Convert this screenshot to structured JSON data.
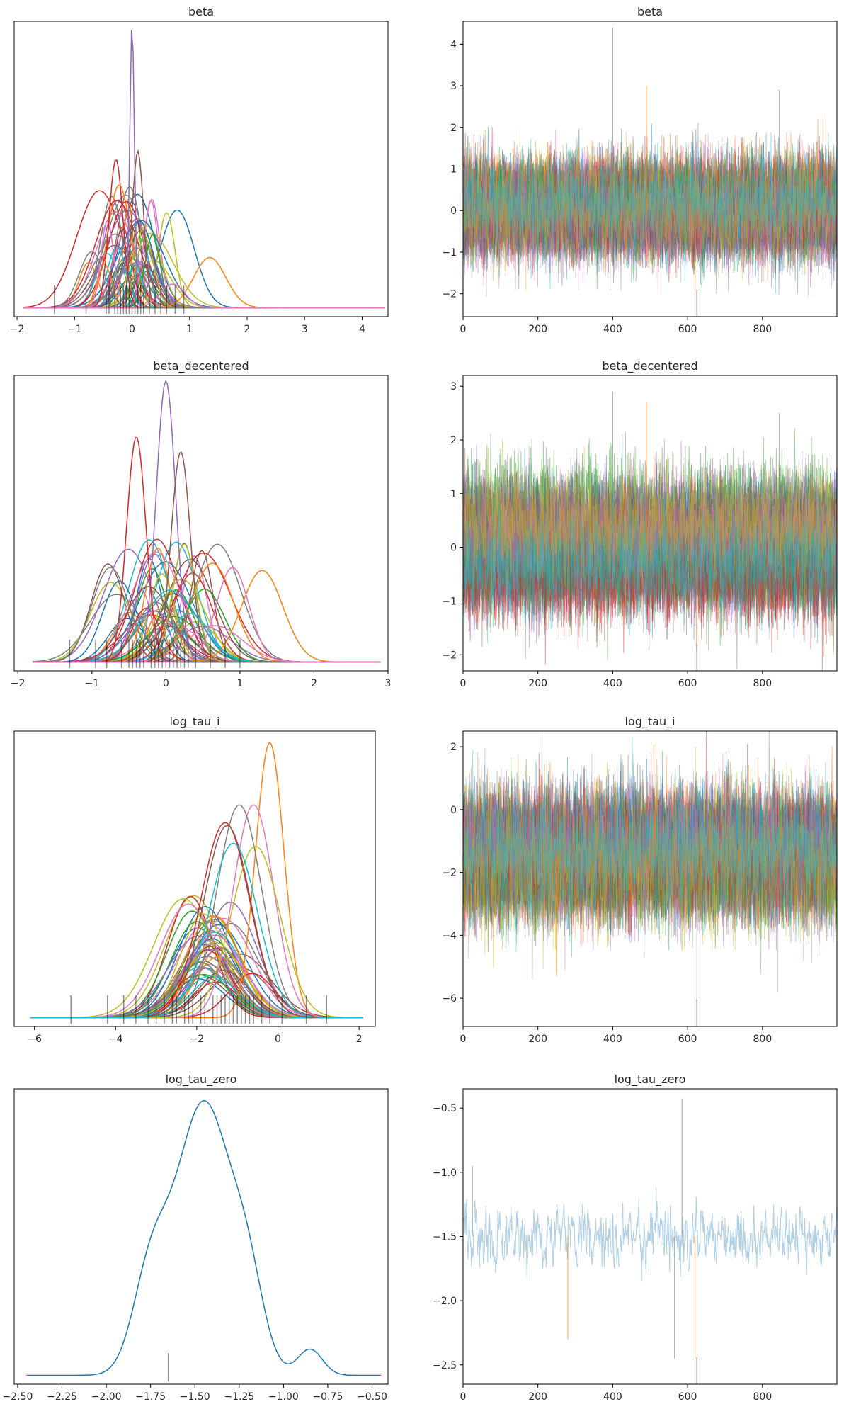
{
  "palette": [
    "#1f77b4",
    "#ff7f0e",
    "#2ca02c",
    "#d62728",
    "#9467bd",
    "#8c564b",
    "#e377c2",
    "#7f7f7f",
    "#bcbd22",
    "#17becf"
  ],
  "rug_color": "#000000",
  "chart_data": [
    {
      "id": "beta-density",
      "type": "line",
      "kind": "kde",
      "title": "beta",
      "xlim": [
        -2.05,
        4.45
      ],
      "ylim": [
        0,
        1.0
      ],
      "xticks": [
        -2,
        -1,
        0,
        1,
        2,
        3,
        4
      ],
      "yticks": [],
      "dist": "normal",
      "n_series": 50,
      "center_mean": 0.0,
      "center_spread": 0.3,
      "scale_min": 0.06,
      "scale_max": 0.4,
      "support": [
        -1.9,
        4.4
      ],
      "named_series": [
        {
          "color": "#9467bd",
          "mean": 0.0,
          "scale": 0.04,
          "peak": 0.94
        },
        {
          "color": "#d62728",
          "mean": -0.28,
          "scale": 0.12,
          "peak": 0.5
        },
        {
          "color": "#8c564b",
          "mean": 0.1,
          "scale": 0.1,
          "peak": 0.53
        },
        {
          "color": "#ff7f0e",
          "mean": 1.35,
          "scale": 0.28,
          "peak": 0.17
        },
        {
          "color": "#7f7f7f",
          "mean": -0.7,
          "scale": 0.22,
          "peak": 0.19
        },
        {
          "color": "#e377c2",
          "mean": 0.7,
          "scale": 0.22,
          "peak": 0.08
        }
      ],
      "rug": [
        -1.35,
        -0.8,
        -0.45,
        -0.4,
        -0.3,
        -0.25,
        -0.2,
        -0.15,
        -0.1,
        -0.05,
        0.0,
        0.05,
        0.1,
        0.15,
        0.2,
        0.3,
        0.4,
        0.5,
        0.6,
        0.75,
        0.9
      ]
    },
    {
      "id": "beta-trace",
      "type": "line",
      "kind": "trace",
      "title": "beta",
      "xlim": [
        0,
        999
      ],
      "ylim": [
        -2.55,
        4.55
      ],
      "xticks": [
        0,
        200,
        400,
        600,
        800
      ],
      "yticks": [
        -2,
        -1,
        0,
        1,
        2,
        3,
        4
      ],
      "n_series": 50,
      "n_draws": 1000,
      "center_mean": 0.05,
      "center_spread": 0.25,
      "noise": 0.5,
      "spikes": [
        [
          400,
          4.4
        ],
        [
          490,
          3.0
        ],
        [
          845,
          2.9
        ],
        [
          620,
          -1.9
        ]
      ]
    },
    {
      "id": "beta-decentered-density",
      "type": "line",
      "kind": "kde",
      "title": "beta_decentered",
      "xlim": [
        -2.05,
        3.0
      ],
      "ylim": [
        0,
        1.0
      ],
      "xticks": [
        -2,
        -1,
        0,
        1,
        2,
        3
      ],
      "yticks": [],
      "dist": "normal",
      "n_series": 50,
      "center_mean": 0.0,
      "center_spread": 0.35,
      "scale_min": 0.12,
      "scale_max": 0.38,
      "support": [
        -1.8,
        2.9
      ],
      "named_series": [
        {
          "color": "#9467bd",
          "mean": 0.0,
          "scale": 0.13,
          "peak": 0.95
        },
        {
          "color": "#d62728",
          "mean": -0.4,
          "scale": 0.13,
          "peak": 0.76
        },
        {
          "color": "#8c564b",
          "mean": 0.2,
          "scale": 0.13,
          "peak": 0.71
        },
        {
          "color": "#ff7f0e",
          "mean": 1.3,
          "scale": 0.28,
          "peak": 0.31
        },
        {
          "color": "#7f7f7f",
          "mean": -0.75,
          "scale": 0.25,
          "peak": 0.32
        },
        {
          "color": "#e377c2",
          "mean": 0.9,
          "scale": 0.22,
          "peak": 0.32
        }
      ],
      "rug": [
        -1.3,
        -0.95,
        -0.8,
        -0.6,
        -0.5,
        -0.45,
        -0.4,
        -0.35,
        -0.3,
        -0.2,
        -0.15,
        -0.1,
        -0.05,
        0.0,
        0.05,
        0.1,
        0.15,
        0.2,
        0.25,
        0.3,
        0.4,
        0.6,
        0.8,
        1.0
      ]
    },
    {
      "id": "beta-decentered-trace",
      "type": "line",
      "kind": "trace",
      "title": "beta_decentered",
      "xlim": [
        0,
        999
      ],
      "ylim": [
        -2.3,
        3.2
      ],
      "xticks": [
        0,
        200,
        400,
        600,
        800
      ],
      "yticks": [
        -2,
        -1,
        0,
        1,
        2,
        3
      ],
      "n_series": 50,
      "n_draws": 1000,
      "center_mean": 0.1,
      "center_spread": 0.3,
      "noise": 0.45,
      "spikes": [
        [
          400,
          2.9
        ],
        [
          490,
          2.7
        ],
        [
          845,
          2.5
        ],
        [
          625,
          -1.8
        ]
      ]
    },
    {
      "id": "log-tau-i-density",
      "type": "line",
      "kind": "kde",
      "title": "log_tau_i",
      "xlim": [
        -6.5,
        2.4
      ],
      "ylim": [
        0,
        1.0
      ],
      "xticks": [
        -6,
        -4,
        -2,
        0,
        2
      ],
      "yticks": [],
      "dist": "normal",
      "n_series": 50,
      "center_mean": -1.6,
      "center_spread": 0.35,
      "scale_min": 0.55,
      "scale_max": 0.75,
      "support": [
        -6.1,
        2.1
      ],
      "named_series": [
        {
          "color": "#ff7f0e",
          "mean": -0.2,
          "scale": 0.35,
          "peak": 0.93
        },
        {
          "color": "#e377c2",
          "mean": -0.6,
          "scale": 0.5,
          "peak": 0.72
        },
        {
          "color": "#7f7f7f",
          "mean": -0.95,
          "scale": 0.55,
          "peak": 0.72
        },
        {
          "color": "#d62728",
          "mean": -1.3,
          "scale": 0.6,
          "peak": 0.66
        },
        {
          "color": "#8c564b",
          "mean": -1.25,
          "scale": 0.58,
          "peak": 0.65
        },
        {
          "color": "#bcbd22",
          "mean": -0.55,
          "scale": 0.6,
          "peak": 0.58
        },
        {
          "color": "#17becf",
          "mean": -1.1,
          "scale": 0.6,
          "peak": 0.59
        }
      ],
      "rug": [
        -5.1,
        -4.2,
        -3.8,
        -3.5,
        -3.2,
        -3.0,
        -2.8,
        -2.6,
        -2.5,
        -2.3,
        -2.2,
        -2.1,
        -1.9,
        -1.8,
        -1.6,
        -1.5,
        -1.4,
        -1.3,
        -1.2,
        -1.1,
        -1.0,
        -0.9,
        -0.8,
        -0.7,
        -0.6,
        -0.4,
        -0.2,
        0.1,
        0.7,
        1.2
      ]
    },
    {
      "id": "log-tau-i-trace",
      "type": "line",
      "kind": "trace",
      "title": "log_tau_i",
      "xlim": [
        0,
        999
      ],
      "ylim": [
        -6.9,
        2.5
      ],
      "xticks": [
        0,
        200,
        400,
        600,
        800
      ],
      "yticks": [
        -6,
        -4,
        -2,
        0,
        2
      ],
      "n_series": 50,
      "n_draws": 1000,
      "center_mean": -1.55,
      "center_spread": 0.3,
      "noise": 0.85,
      "spikes": [
        [
          625,
          -6.1
        ],
        [
          510,
          2.1
        ],
        [
          760,
          2.1
        ],
        [
          250,
          -5.3
        ],
        [
          840,
          -5.8
        ]
      ]
    },
    {
      "id": "log-tau-zero-density",
      "type": "line",
      "kind": "kde",
      "title": "log_tau_zero",
      "xlim": [
        -2.52,
        -0.41
      ],
      "ylim": [
        0,
        1.0
      ],
      "xticks": [
        -2.5,
        -2.25,
        -2.0,
        -1.75,
        -1.5,
        -1.25,
        -1.0,
        -0.75,
        -0.5
      ],
      "xtick_labels": [
        "−2.50",
        "−2.25",
        "−2.00",
        "−1.75",
        "−1.50",
        "−1.25",
        "−1.00",
        "−0.75",
        "−0.50"
      ],
      "yticks": [],
      "dist": "mixture",
      "n_series": 0,
      "support": [
        -2.45,
        -0.45
      ],
      "components": [
        {
          "mean": -1.45,
          "scale": 0.16,
          "weight": 0.72
        },
        {
          "mean": -1.75,
          "scale": 0.1,
          "weight": 0.15
        },
        {
          "mean": -1.2,
          "scale": 0.09,
          "weight": 0.1
        },
        {
          "mean": -0.85,
          "scale": 0.07,
          "weight": 0.03
        }
      ],
      "named_series": [
        {
          "color": "#1f77b4",
          "peak": 0.93
        }
      ],
      "rug": [
        -1.65
      ]
    },
    {
      "id": "log-tau-zero-trace",
      "type": "line",
      "kind": "trace",
      "title": "log_tau_zero",
      "xlim": [
        0,
        999
      ],
      "ylim": [
        -2.65,
        -0.35
      ],
      "xticks": [
        0,
        200,
        400,
        600,
        800
      ],
      "yticks": [
        -2.5,
        -2.0,
        -1.5,
        -1.0,
        -0.5
      ],
      "ytick_labels": [
        "−2.5",
        "−2.0",
        "−1.5",
        "−1.0",
        "−0.5"
      ],
      "n_series": 1,
      "n_draws": 1000,
      "center_mean": -1.5,
      "center_spread": 0.0,
      "noise": 0.22,
      "color": "#1f77b4",
      "spikes": [
        [
          585,
          -0.43
        ],
        [
          280,
          -2.3
        ],
        [
          565,
          -2.45
        ],
        [
          620,
          -2.45
        ],
        [
          25,
          -0.95
        ]
      ]
    }
  ]
}
